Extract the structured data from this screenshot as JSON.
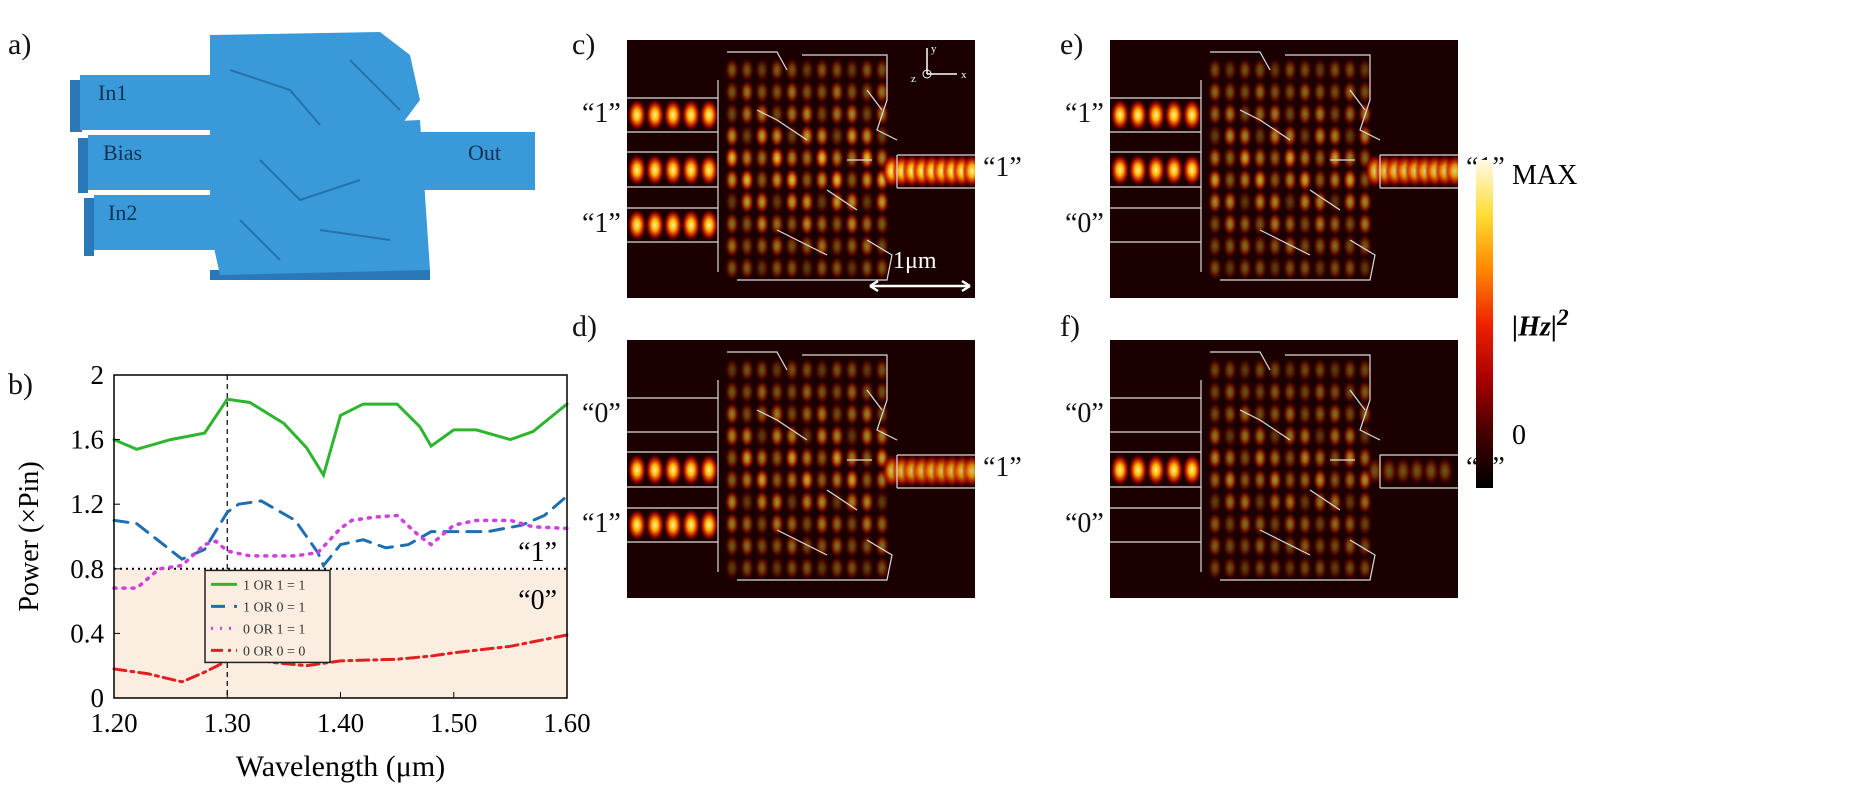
{
  "panels": {
    "a": "a)",
    "b": "b)",
    "c": "c)",
    "d": "d)",
    "e": "e)",
    "f": "f)"
  },
  "device": {
    "labels": [
      "In1",
      "Bias",
      "In2",
      "Out"
    ],
    "color": "#3a9ad9"
  },
  "fields": [
    {
      "id": "c",
      "inputs": [
        "“1”",
        "“1”"
      ],
      "output": "“1”",
      "in1": 1,
      "in2": 1,
      "out": 1
    },
    {
      "id": "e",
      "inputs": [
        "“1”",
        "“0”"
      ],
      "output": "“1”",
      "in1": 1,
      "in2": 0,
      "out": 0.85
    },
    {
      "id": "d",
      "inputs": [
        "“0”",
        "“1”"
      ],
      "output": "“1”",
      "in1": 0,
      "in2": 1,
      "out": 0.8
    },
    {
      "id": "f",
      "inputs": [
        "“0”",
        "“0”"
      ],
      "output": "“0”",
      "in1": 0,
      "in2": 0,
      "out": 0.2
    }
  ],
  "axes_glyph": {
    "y": "y",
    "x": "x",
    "z": "z"
  },
  "scale_bar": "1μm",
  "colorbar": {
    "max": "MAX",
    "min": "0",
    "label": "|Hz|",
    "exp": "2"
  },
  "chart_data": {
    "type": "line",
    "xlabel": "Wavelength (μm)",
    "ylabel": "Power (×Pin)",
    "xlim": [
      1.2,
      1.6
    ],
    "ylim": [
      0,
      2
    ],
    "xticks": [
      "1.20",
      "1.30",
      "1.40",
      "1.50",
      "1.60"
    ],
    "yticks": [
      "0",
      "0.4",
      "0.8",
      "1.2",
      "1.6",
      "2"
    ],
    "threshold": 0.8,
    "marker_x": 1.3,
    "region_labels": {
      "above": "“1”",
      "below": "“0”"
    },
    "shade_color": "#fbeee0",
    "series": [
      {
        "name": "1 OR 1 = 1",
        "color": "#2db52d",
        "style": "solid",
        "x": [
          1.2,
          1.22,
          1.25,
          1.28,
          1.3,
          1.32,
          1.35,
          1.37,
          1.385,
          1.4,
          1.42,
          1.45,
          1.47,
          1.48,
          1.5,
          1.52,
          1.55,
          1.57,
          1.6
        ],
        "y": [
          1.6,
          1.54,
          1.6,
          1.64,
          1.85,
          1.83,
          1.7,
          1.55,
          1.38,
          1.75,
          1.82,
          1.82,
          1.68,
          1.56,
          1.66,
          1.66,
          1.6,
          1.65,
          1.82
        ]
      },
      {
        "name": "1 OR 0 = 1",
        "color": "#1f6fb0",
        "style": "dashed",
        "x": [
          1.2,
          1.22,
          1.26,
          1.28,
          1.3,
          1.31,
          1.33,
          1.36,
          1.38,
          1.385,
          1.4,
          1.42,
          1.44,
          1.46,
          1.48,
          1.5,
          1.53,
          1.56,
          1.58,
          1.6
        ],
        "y": [
          1.1,
          1.08,
          0.86,
          0.92,
          1.15,
          1.2,
          1.22,
          1.1,
          0.9,
          0.82,
          0.95,
          0.98,
          0.93,
          0.95,
          1.03,
          1.03,
          1.03,
          1.07,
          1.13,
          1.25
        ]
      },
      {
        "name": "0 OR 1 = 1",
        "color": "#d040e0",
        "style": "dotted",
        "x": [
          1.2,
          1.22,
          1.24,
          1.26,
          1.28,
          1.29,
          1.3,
          1.32,
          1.36,
          1.38,
          1.4,
          1.41,
          1.43,
          1.45,
          1.47,
          1.48,
          1.5,
          1.52,
          1.55,
          1.57,
          1.6
        ],
        "y": [
          0.68,
          0.68,
          0.8,
          0.82,
          0.95,
          0.97,
          0.91,
          0.88,
          0.88,
          0.9,
          1.05,
          1.1,
          1.12,
          1.13,
          1.0,
          0.95,
          1.07,
          1.1,
          1.1,
          1.06,
          1.05
        ]
      },
      {
        "name": "0 OR 0 = 0",
        "color": "#e02020",
        "style": "dashdot",
        "x": [
          1.2,
          1.23,
          1.26,
          1.28,
          1.3,
          1.32,
          1.34,
          1.37,
          1.4,
          1.45,
          1.48,
          1.5,
          1.55,
          1.6
        ],
        "y": [
          0.18,
          0.15,
          0.1,
          0.16,
          0.23,
          0.25,
          0.22,
          0.2,
          0.23,
          0.24,
          0.26,
          0.28,
          0.32,
          0.39
        ]
      }
    ]
  }
}
